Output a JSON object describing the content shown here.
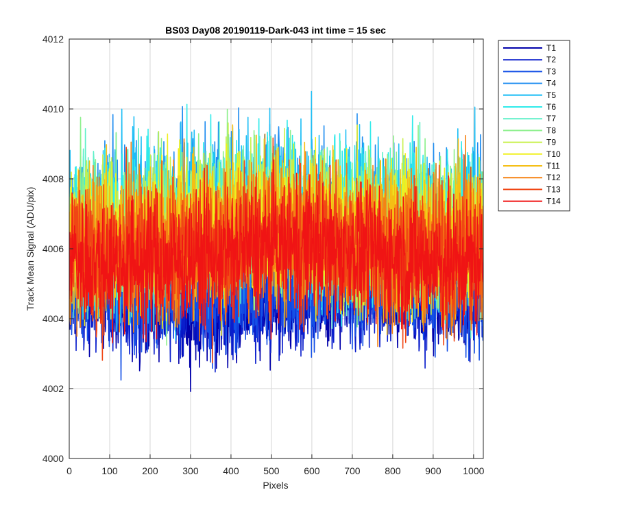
{
  "chart_data": {
    "type": "line",
    "title": "BS03 Day08 20190119-Dark-043 int time = 15 sec",
    "xlabel": "Pixels",
    "ylabel": "Track Mean Signal (ADU/pix)",
    "xlim": [
      0,
      1024
    ],
    "ylim": [
      4000,
      4012
    ],
    "xticks": [
      0,
      100,
      200,
      300,
      400,
      500,
      600,
      700,
      800,
      900,
      1000
    ],
    "yticks": [
      4000,
      4002,
      4004,
      4006,
      4008,
      4010,
      4012
    ],
    "grid": true,
    "legend_position": "outside-top-right",
    "n_pixels": 1024,
    "series": [
      {
        "name": "T1",
        "color": "#0000AA",
        "mean": 4004.5,
        "spread": 0.75
      },
      {
        "name": "T2",
        "color": "#0A1ECC",
        "mean": 4004.6,
        "spread": 0.75
      },
      {
        "name": "T3",
        "color": "#1450E6",
        "mean": 4004.8,
        "spread": 0.8
      },
      {
        "name": "T4",
        "color": "#1E8CF0",
        "mean": 4006.8,
        "spread": 1.2
      },
      {
        "name": "T5",
        "color": "#1EBEF5",
        "mean": 4006.9,
        "spread": 1.2
      },
      {
        "name": "T6",
        "color": "#2EEAEA",
        "mean": 4006.8,
        "spread": 1.15
      },
      {
        "name": "T7",
        "color": "#5FF0C8",
        "mean": 4006.7,
        "spread": 1.1
      },
      {
        "name": "T8",
        "color": "#8CF08C",
        "mean": 4006.7,
        "spread": 1.1
      },
      {
        "name": "T9",
        "color": "#C8F04B",
        "mean": 4006.6,
        "spread": 1.05
      },
      {
        "name": "T10",
        "color": "#F0F01E",
        "mean": 4006.5,
        "spread": 1.05
      },
      {
        "name": "T11",
        "color": "#F5BE14",
        "mean": 4006.4,
        "spread": 1.05
      },
      {
        "name": "T12",
        "color": "#F58214",
        "mean": 4006.3,
        "spread": 1.1
      },
      {
        "name": "T13",
        "color": "#F04614",
        "mean": 4006.0,
        "spread": 1.05
      },
      {
        "name": "T14",
        "color": "#F01414",
        "mean": 4005.8,
        "spread": 0.95
      }
    ]
  }
}
